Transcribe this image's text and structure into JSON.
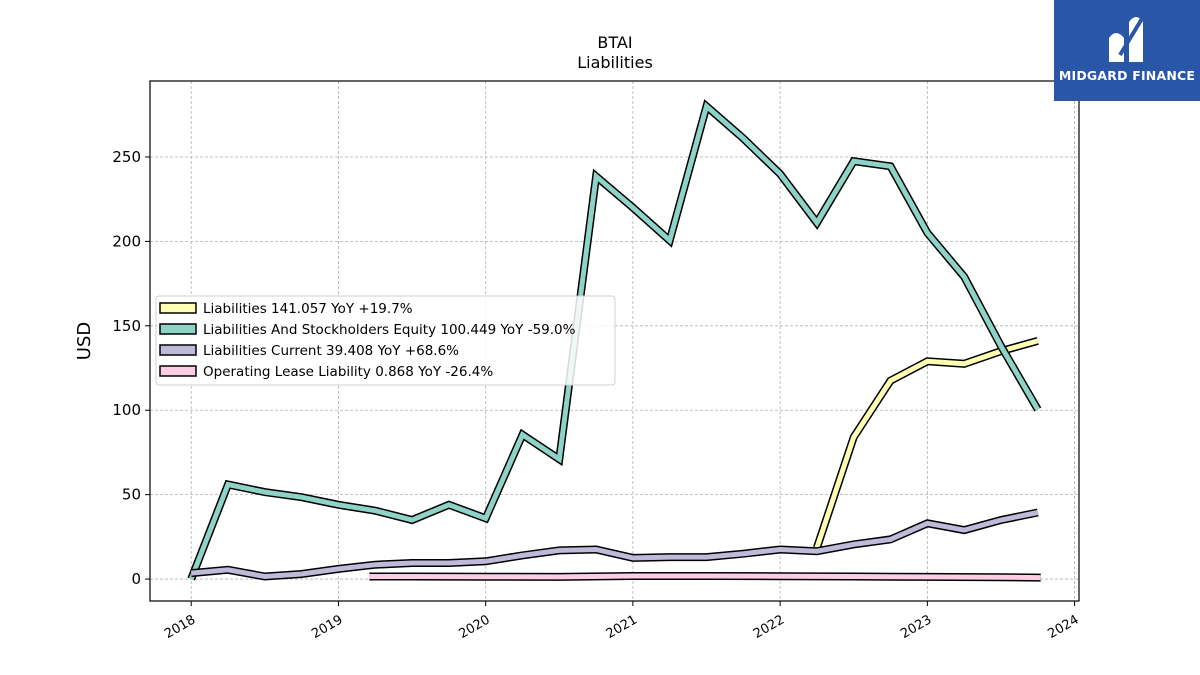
{
  "chart_data": {
    "type": "line",
    "title": "BTAI",
    "subtitle": "Liabilities",
    "ylabel": "USD",
    "xlabel": "",
    "ylim": [
      -13,
      295
    ],
    "xlim": [
      2017.72,
      2024.03
    ],
    "yticks": [
      0,
      50,
      100,
      150,
      200,
      250
    ],
    "xticks": [
      2018,
      2019,
      2020,
      2021,
      2022,
      2023,
      2024
    ],
    "grid": true,
    "legend_position": "center-left",
    "series": [
      {
        "name": "Liabilities  141.057 YoY +19.7%",
        "color": "#ffffb3",
        "x": [
          2022.25,
          2022.5,
          2022.75,
          2023.0,
          2023.25,
          2023.5,
          2023.75
        ],
        "y": [
          18.5,
          84,
          117.5,
          129,
          127.5,
          135,
          141.06
        ]
      },
      {
        "name": "Liabilities And Stockholders Equity  100.449 YoY -59.0%",
        "color": "#8dd3c7",
        "x": [
          2018.0,
          2018.25,
          2018.5,
          2018.75,
          2019.0,
          2019.25,
          2019.5,
          2019.75,
          2020.0,
          2020.25,
          2020.5,
          2020.75,
          2021.0,
          2021.25,
          2021.5,
          2021.75,
          2022.0,
          2022.25,
          2022.5,
          2022.75,
          2023.0,
          2023.25,
          2023.5,
          2023.75
        ],
        "y": [
          0,
          56,
          51.5,
          48.5,
          44,
          40.5,
          35,
          44,
          36,
          85.5,
          71,
          238.5,
          220,
          200.5,
          280,
          261,
          240,
          211,
          247.5,
          244.5,
          205,
          179,
          138,
          100.45
        ]
      },
      {
        "name": "Liabilities Current  39.408 YoY +68.6%",
        "color": "#bebada",
        "x": [
          2018.0,
          2018.25,
          2018.5,
          2018.75,
          2019.0,
          2019.25,
          2019.5,
          2019.75,
          2020.0,
          2020.25,
          2020.5,
          2020.75,
          2021.0,
          2021.25,
          2021.5,
          2021.75,
          2022.0,
          2022.25,
          2022.5,
          2022.75,
          2023.0,
          2023.25,
          2023.5,
          2023.75
        ],
        "y": [
          3.5,
          5.5,
          1.5,
          3,
          6,
          8.5,
          9.5,
          9.5,
          10.5,
          14,
          17,
          17.5,
          12.5,
          13,
          13,
          15,
          17.5,
          16.5,
          20.5,
          23.5,
          33,
          29,
          35,
          39.41
        ]
      },
      {
        "name": "Operating Lease Liability  0.868 YoY -26.4%",
        "color": "#fccde5",
        "x": [
          2019.21,
          2019.5,
          2020.0,
          2020.5,
          2021.0,
          2021.5,
          2022.0,
          2022.5,
          2023.0,
          2023.5,
          2023.77
        ],
        "y": [
          1.5,
          1.5,
          1.4,
          1.3,
          1.8,
          1.8,
          1.7,
          1.5,
          1.3,
          1.1,
          0.87
        ]
      }
    ]
  },
  "logo": {
    "text": "MIDGARD FINANCE",
    "background": "#2a56a8"
  }
}
